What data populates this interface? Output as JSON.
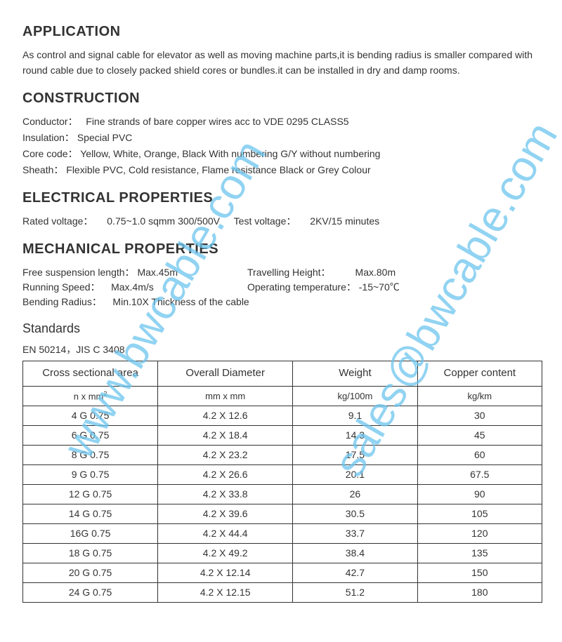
{
  "watermark1": "www.bwcable.com",
  "watermark2": "sales@bwcable.com",
  "sections": {
    "application": {
      "title": "APPLICATION",
      "text": "As control and signal cable for elevator as well as moving machine parts,it is bending radius is smaller compared with round cable due to closely packed shield cores or bundles.it can be installed in dry and damp rooms."
    },
    "construction": {
      "title": "CONSTRUCTION",
      "conductor_label": "Conductor：",
      "conductor_value": "Fine strands of bare copper wires acc to VDE 0295 CLASS5",
      "insulation_label": "Insulation：",
      "insulation_value": "Special PVC",
      "corecode_label": "Core code：",
      "corecode_value": "Yellow, White, Orange, Black With numbering     G/Y without numbering",
      "sheath_label": "Sheath：",
      "sheath_value": "Flexible PVC, Cold resistance, Flame resistance Black or Grey Colour"
    },
    "electrical": {
      "title": "ELECTRICAL PROPERTIES",
      "rated_label": "Rated voltage：",
      "rated_value": "0.75~1.0 sqmm    300/500V",
      "test_label": "Test voltage：",
      "test_value": "2KV/15 minutes"
    },
    "mechanical": {
      "title": "MECHANICAL PROPERTIES",
      "suspension_label": "Free suspension length：",
      "suspension_value": "Max.45m",
      "height_label": "Travelling Height：",
      "height_value": "Max.80m",
      "speed_label": "Running Speed：",
      "speed_value": "Max.4m/s",
      "temp_label": "Operating temperature：",
      "temp_value": "-15~70℃",
      "radius_label": "Bending Radius：",
      "radius_value": "Min.10X Thickness of the cable"
    },
    "standards": {
      "title": "Standards",
      "text": "EN 50214，JIS C 3408"
    }
  },
  "table": {
    "headers": [
      "Cross sectional area",
      "Overall Diameter",
      "Weight",
      "Copper content"
    ],
    "units": [
      "n x mm²",
      "mm x mm",
      "kg/100m",
      "kg/km"
    ],
    "col_widths": [
      "26%",
      "26%",
      "24%",
      "24%"
    ],
    "border_color": "#333333",
    "rows": [
      [
        "4 G 0.75",
        "4.2 X 12.6",
        "9.1",
        "30"
      ],
      [
        "6 G 0.75",
        "4.2 X 18.4",
        "14.3",
        "45"
      ],
      [
        "8 G 0.75",
        "4.2 X 23.2",
        "17.5",
        "60"
      ],
      [
        "9 G 0.75",
        "4.2 X 26.6",
        "20.1",
        "67.5"
      ],
      [
        "12 G 0.75",
        "4.2 X 33.8",
        "26",
        "90"
      ],
      [
        "14 G 0.75",
        "4.2 X 39.6",
        "30.5",
        "105"
      ],
      [
        "16G 0.75",
        "4.2 X 44.4",
        "33.7",
        "120"
      ],
      [
        "18 G 0.75",
        "4.2 X 49.2",
        "38.4",
        "135"
      ],
      [
        "20 G 0.75",
        "4.2 X 12.14",
        "42.7",
        "150"
      ],
      [
        "24 G 0.75",
        "4.2 X 12.15",
        "51.2",
        "180"
      ]
    ]
  }
}
